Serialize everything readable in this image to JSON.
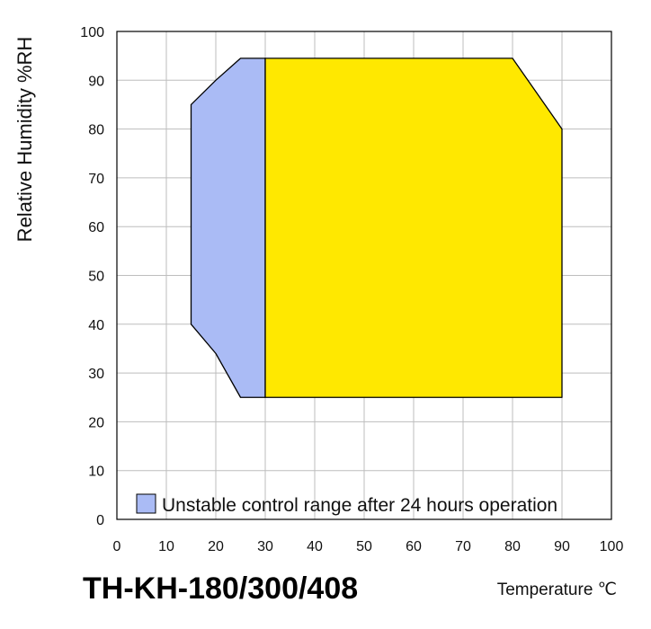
{
  "chart_data": {
    "type": "area",
    "title": "TH-KH-180/300/408",
    "xlabel": "Temperature ℃",
    "ylabel": "Relative Humidity %RH",
    "xlim": [
      0,
      100
    ],
    "ylim": [
      0,
      100
    ],
    "xticks": [
      "0",
      "10",
      "20",
      "30",
      "40",
      "50",
      "60",
      "70",
      "80",
      "90",
      "100"
    ],
    "yticks": [
      "0",
      "10",
      "20",
      "30",
      "40",
      "50",
      "60",
      "70",
      "80",
      "90",
      "100"
    ],
    "grid": true,
    "legend": {
      "label": "Unstable control range after 24 hours operation",
      "placement": "bottom"
    },
    "series": [
      {
        "name": "Unstable control range after 24 hours operation",
        "color": "#aabbf5",
        "points": [
          [
            15,
            40
          ],
          [
            15,
            85
          ],
          [
            20,
            90
          ],
          [
            25,
            94.5
          ],
          [
            30,
            94.5
          ],
          [
            30,
            25
          ],
          [
            25,
            25
          ],
          [
            20,
            34
          ],
          [
            15,
            40
          ]
        ]
      },
      {
        "color": "#ffe800",
        "points": [
          [
            30,
            25
          ],
          [
            30,
            94.5
          ],
          [
            80,
            94.5
          ],
          [
            90,
            80
          ],
          [
            90,
            25
          ],
          [
            30,
            25
          ]
        ]
      }
    ]
  }
}
